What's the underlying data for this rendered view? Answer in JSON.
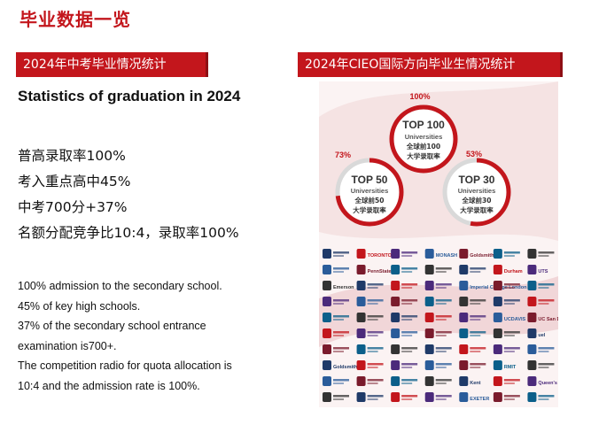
{
  "page": {
    "title": "毕业数据一览"
  },
  "left": {
    "banner": "2024年中考毕业情况统计",
    "heading": "Statistics of graduation in 2024",
    "stats": [
      "普高录取率100%",
      "考入重点高中45%",
      "中考700分+37%",
      "名额分配竞争比10:4，录取率100%"
    ],
    "description": [
      "100% admission to the secondary school.",
      "45% of key high schools.",
      "37% of the secondary school entrance",
      "examination is700+.",
      "The competition radio for quota allocation is",
      "10:4 and the admission rate is 100%."
    ]
  },
  "right": {
    "banner": "2024年CIEO国际方向毕业生情况统计",
    "rings": [
      {
        "percent_label": "100%",
        "value": 1.0,
        "top_label": "TOP 100",
        "universities": "Universities",
        "cn_line1": "全球前100",
        "cn_line2": "大学录取率"
      },
      {
        "percent_label": "73%",
        "value": 0.73,
        "top_label": "TOP 50",
        "universities": "Universities",
        "cn_line1": "全球前50",
        "cn_line2": "大学录取率"
      },
      {
        "percent_label": "53%",
        "value": 0.53,
        "top_label": "TOP 30",
        "universities": "Universities",
        "cn_line1": "全球前30",
        "cn_line2": "大学录取率"
      }
    ],
    "logos": [
      [
        "",
        "TORONTO",
        "",
        "MONASH",
        "Goldsmiths",
        "",
        ""
      ],
      [
        "",
        "PennState",
        "",
        "",
        "",
        "Durham",
        "UTS"
      ],
      [
        "Emerson",
        "",
        "",
        "",
        "Imperial College London",
        "",
        ""
      ],
      [
        "",
        "",
        "",
        "",
        "",
        "",
        ""
      ],
      [
        "",
        "",
        "",
        "",
        "",
        "UCDAVIS",
        "UC San Diego"
      ],
      [
        "",
        "",
        "",
        "",
        "",
        "",
        "uel"
      ],
      [
        "",
        "",
        "",
        "",
        "",
        "",
        ""
      ],
      [
        "Goldsmiths",
        "",
        "",
        "",
        "",
        "RMIT",
        ""
      ],
      [
        "",
        "",
        "",
        "",
        "Kent",
        "",
        "Queen's"
      ],
      [
        "",
        "",
        "",
        "",
        "EXETER",
        "",
        ""
      ]
    ],
    "colors": {
      "accent": "#c3161c",
      "ring_track": "#d9d9d9",
      "blob": "#f3dcdc"
    }
  }
}
